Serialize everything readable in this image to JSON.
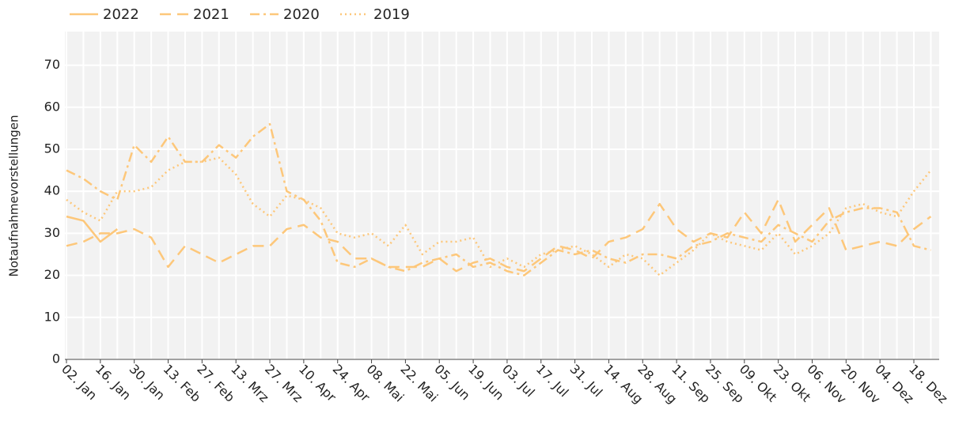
{
  "chart_data": {
    "type": "line",
    "y_label": "Notaufnahmevorstellungen",
    "categories": [
      "02. Jan",
      null,
      "16. Jan",
      null,
      "30. Jan",
      null,
      "13. Feb",
      null,
      "27. Feb",
      null,
      "13. Mrz",
      null,
      "27. Mrz",
      null,
      "10. Apr",
      null,
      "24. Apr",
      null,
      "08. Mai",
      null,
      "22. Mai",
      null,
      "05. Jun",
      null,
      "19. Jun",
      null,
      "03. Jul",
      null,
      "17. Jul",
      null,
      "31. Jul",
      null,
      "14. Aug",
      null,
      "28. Aug",
      null,
      "11. Sep",
      null,
      "25. Sep",
      null,
      "09. Okt",
      null,
      "23. Okt",
      null,
      "06. Nov",
      null,
      "20. Nov",
      null,
      "04. Dez",
      null,
      "18. Dez",
      null
    ],
    "series": [
      {
        "name": "2022",
        "color": "#fdc77a",
        "line_style": "solid",
        "values": [
          34,
          33,
          28,
          31,
          null,
          null,
          null,
          null,
          null,
          null,
          null,
          null,
          null,
          null,
          null,
          null,
          null,
          null,
          null,
          null,
          null,
          null,
          null,
          null,
          null,
          null,
          null,
          null,
          null,
          null,
          null,
          null,
          null,
          null,
          null,
          null,
          null,
          null,
          null,
          null,
          null,
          null,
          null,
          null,
          null,
          null,
          null,
          null,
          null,
          null,
          null,
          null
        ]
      },
      {
        "name": "2021",
        "color": "#fdc77a",
        "line_style": "dashed",
        "values": [
          27,
          28,
          30,
          30,
          31,
          29,
          22,
          27,
          25,
          23,
          25,
          27,
          27,
          31,
          32,
          29,
          28,
          24,
          24,
          22,
          22,
          22,
          24,
          21,
          23,
          24,
          22,
          21,
          24,
          27,
          26,
          24,
          28,
          29,
          31,
          37,
          31,
          28,
          30,
          29,
          35,
          30,
          38,
          28,
          32,
          36,
          26,
          27,
          28,
          27,
          31,
          34
        ]
      },
      {
        "name": "2020",
        "color": "#fdc77a",
        "line_style": "dashdot",
        "values": [
          45,
          43,
          40,
          38,
          51,
          47,
          53,
          47,
          47,
          51,
          48,
          53,
          56,
          40,
          38,
          33,
          23,
          22,
          24,
          22,
          21,
          23,
          24,
          25,
          22,
          23,
          21,
          20,
          23,
          26,
          25,
          26,
          24,
          23,
          25,
          25,
          24,
          27,
          28,
          30,
          29,
          28,
          32,
          30,
          28,
          33,
          35,
          36,
          36,
          35,
          27,
          26
        ]
      },
      {
        "name": "2019",
        "color": "#fdc77a",
        "line_style": "dotted",
        "values": [
          38,
          35,
          33,
          40,
          40,
          41,
          45,
          47,
          47,
          48,
          44,
          37,
          34,
          39,
          38,
          36,
          30,
          29,
          30,
          27,
          32,
          25,
          28,
          28,
          29,
          22,
          24,
          22,
          25,
          26,
          27,
          25,
          22,
          25,
          24,
          20,
          23,
          26,
          30,
          28,
          27,
          26,
          30,
          25,
          27,
          30,
          36,
          37,
          35,
          34,
          40,
          45
        ]
      }
    ],
    "ylim": [
      0,
      78
    ],
    "yticks": [
      0,
      10,
      20,
      30,
      40,
      50,
      60,
      70
    ],
    "grid": true,
    "legend": "top-left"
  }
}
